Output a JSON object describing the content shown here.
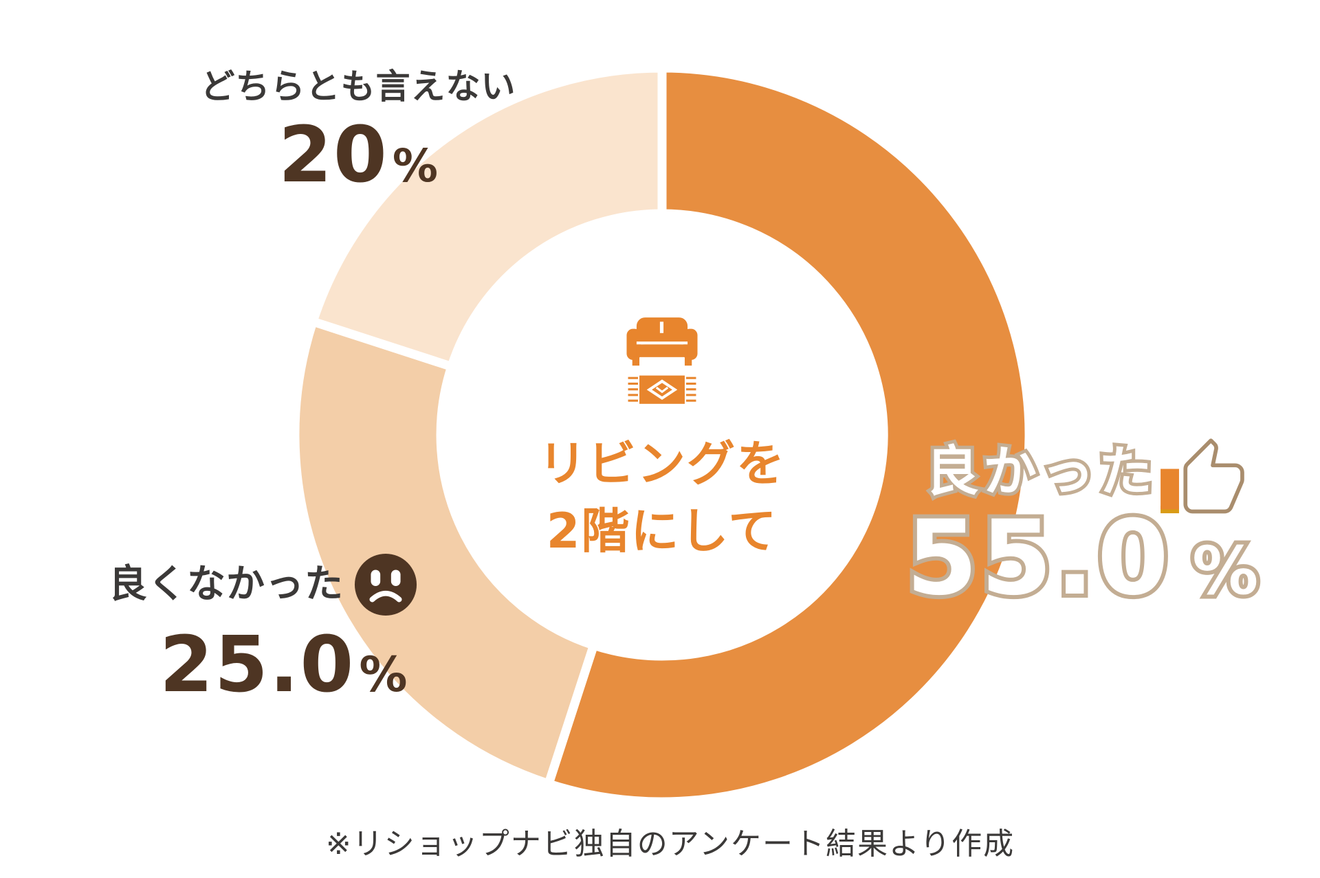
{
  "chart_data": {
    "type": "pie",
    "subtype": "donut",
    "title": "リビングを2階にして",
    "center": {
      "icon": "sofa-icon",
      "line1": "リビングを",
      "line2": "2階にして"
    },
    "slices": [
      {
        "label": "良かった",
        "value": 55.0,
        "display_value": "55.0",
        "unit": "%",
        "color": "#E78E40",
        "icon": "thumbs-up-icon"
      },
      {
        "label": "良くなかった",
        "value": 25.0,
        "display_value": "25.0",
        "unit": "%",
        "color": "#F3CEA8",
        "icon": "sad-face-icon"
      },
      {
        "label": "どちらとも言えない",
        "value": 20.0,
        "display_value": "20",
        "unit": "%",
        "color": "#FAE4CE",
        "icon": null
      }
    ],
    "donut": {
      "start_angle_deg": 0,
      "direction": "clockwise",
      "inner_ratio": 0.6,
      "slice_gap_color": "#FFFFFF"
    },
    "legend_position": "around-slices",
    "footnote": "※リショップナビ独自のアンケート結果より作成"
  },
  "colors": {
    "background": "#FFFFFF",
    "accent_orange": "#E8852D",
    "value_dark_brown": "#4E3523",
    "label_dark": "#3B3938",
    "outline_tan": "#C3AD93",
    "icon_stroke_tan": "#A98D6D",
    "cuff_shadow_orange": "#D99B16"
  }
}
